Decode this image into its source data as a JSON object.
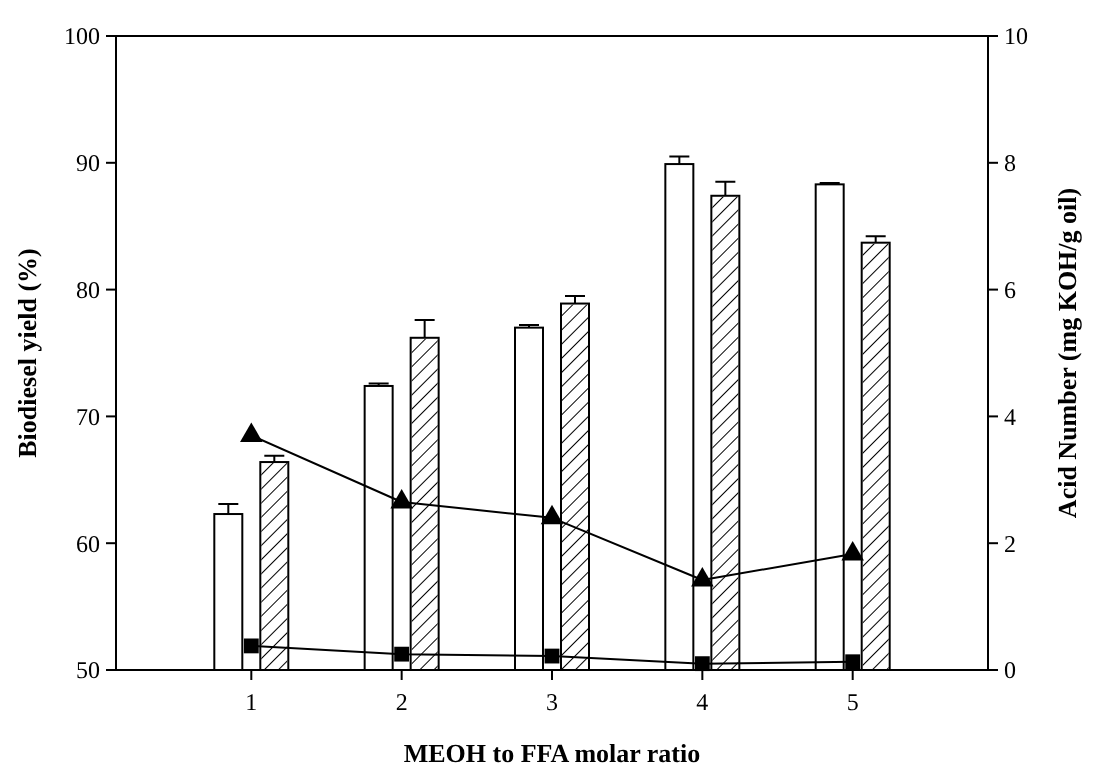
{
  "chart_data": {
    "type": "bar",
    "xlabel": "MEOH to FFA molar ratio",
    "ylabel": "Biodiesel yield (%)",
    "y2label": "Acid Number (mg KOH/g oil)",
    "x": [
      1,
      2,
      3,
      4,
      5
    ],
    "xlim": [
      0.1,
      5.9
    ],
    "xticks": [
      1,
      2,
      3,
      4,
      5
    ],
    "ylim": [
      50,
      100
    ],
    "yticks": [
      50,
      60,
      70,
      80,
      90,
      100
    ],
    "y2lim": [
      0,
      10
    ],
    "y2ticks": [
      0,
      2,
      4,
      6,
      8,
      10
    ],
    "series": [
      {
        "color": "#ffffff",
        "values": [
          62.3,
          72.4,
          77.0,
          89.9,
          88.3
        ],
        "errors": [
          0.8,
          0.2,
          0.2,
          0.6,
          0.1
        ]
      },
      {
        "color": "#ffffff",
        "values": [
          66.4,
          76.2,
          78.9,
          87.4,
          83.7
        ],
        "errors": [
          0.5,
          1.4,
          0.6,
          1.1,
          0.5
        ]
      },
      {
        "type": "line",
        "axis": "y2",
        "color": "#000000",
        "marker": "triangle",
        "values": [
          3.7,
          2.65,
          2.4,
          1.42,
          1.83
        ]
      },
      {
        "type": "line",
        "axis": "y2",
        "color": "#000000",
        "marker": "square",
        "values": [
          0.38,
          0.25,
          0.22,
          0.1,
          0.13
        ]
      }
    ],
    "grid": false
  }
}
